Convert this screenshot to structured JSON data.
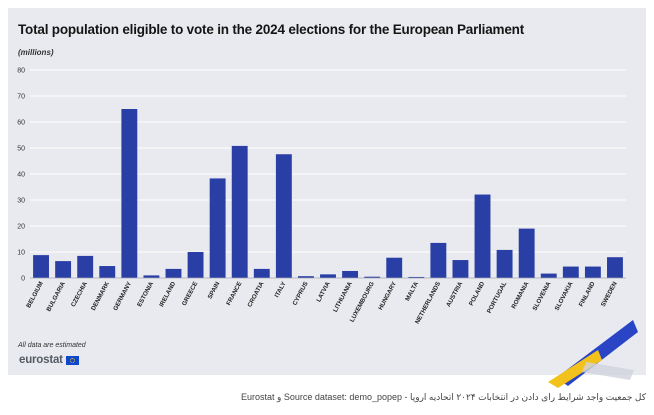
{
  "chart_data": {
    "type": "bar",
    "title": "Total population eligible to vote in the 2024 elections for the European Parliament",
    "ylabel": "(millions)",
    "xlabel": "",
    "ylim": [
      0,
      80
    ],
    "yticks": [
      0,
      10,
      20,
      30,
      40,
      50,
      60,
      70,
      80
    ],
    "grid": true,
    "bar_color": "#2a3fa5",
    "categories": [
      "BELGIUM",
      "BULGARIA",
      "CZECHIA",
      "DENMARK",
      "GERMANY",
      "ESTONIA",
      "IRELAND",
      "GREECE",
      "SPAIN",
      "FRANCE",
      "CROATIA",
      "ITALY",
      "CYPRUS",
      "LATVIA",
      "LITHUANIA",
      "LUXEMBOURG",
      "HUNGARY",
      "MALTA",
      "NETHERLANDS",
      "AUSTRIA",
      "POLAND",
      "PORTUGAL",
      "ROMANIA",
      "SLOVENIA",
      "SLOVAKIA",
      "FINLAND",
      "SWEDEN"
    ],
    "values": [
      8.8,
      6.5,
      8.5,
      4.6,
      65.0,
      1.0,
      3.5,
      10.0,
      38.3,
      50.8,
      3.5,
      47.6,
      0.7,
      1.4,
      2.7,
      0.5,
      7.8,
      0.4,
      13.5,
      6.9,
      32.1,
      10.8,
      19.0,
      1.7,
      4.4,
      4.4,
      8.0
    ]
  },
  "footnote": "All data are estimated",
  "brand": {
    "name": "eurostat"
  },
  "caption": "کل جمعیت واجد شرایط رای دادن در انتخابات ۲۰۲۴ اتحادیه اروپا - Source dataset: demo_popep و Eurostat"
}
